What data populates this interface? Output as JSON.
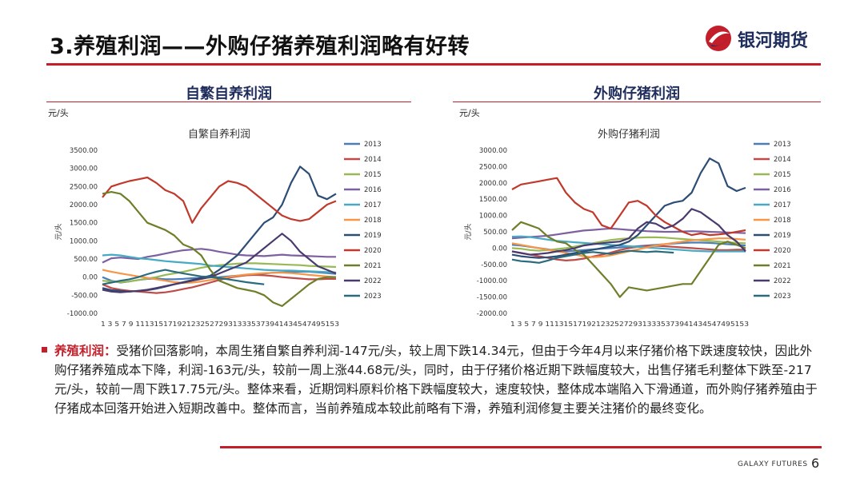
{
  "header": {
    "title": "3.养殖利润——外购仔猪养殖利润略有好转",
    "logo_text": "银河期货"
  },
  "panels": [
    {
      "title": "自繁自养利润",
      "unit": "元/头"
    },
    {
      "title": "外购仔猪利润",
      "unit": "元/头"
    }
  ],
  "chart_data": [
    {
      "type": "line",
      "title": "自繁自养利润",
      "ylabel": "元/头",
      "ylim": [
        -1000,
        3500
      ],
      "yticks": [
        "3500.00",
        "3000.00",
        "2500.00",
        "2000.00",
        "1500.00",
        "1000.00",
        "500.00",
        "0.00",
        "-500.00",
        "-1000.00"
      ],
      "x": [
        1,
        3,
        5,
        7,
        9,
        11,
        13,
        15,
        17,
        19,
        21,
        23,
        25,
        27,
        29,
        31,
        33,
        35,
        37,
        39,
        41,
        43,
        45,
        47,
        49,
        51,
        53
      ],
      "series": [
        {
          "name": "2013",
          "color": "#4a7ebb",
          "values": [
            0,
            -100,
            -150,
            -120,
            -80,
            -50,
            -40,
            -60,
            -60,
            -50,
            -30,
            -20,
            -10,
            0,
            20,
            40,
            60,
            80,
            100,
            120,
            130,
            140,
            150,
            150,
            130,
            110,
            90
          ]
        },
        {
          "name": "2014",
          "color": "#be4b48",
          "values": [
            -200,
            -300,
            -350,
            -380,
            -400,
            -420,
            -440,
            -420,
            -380,
            -330,
            -280,
            -220,
            -150,
            -80,
            -20,
            20,
            50,
            60,
            50,
            30,
            0,
            -20,
            -40,
            -60,
            -60,
            -50,
            -50
          ]
        },
        {
          "name": "2015",
          "color": "#98b954",
          "values": [
            -100,
            -120,
            -140,
            -120,
            -80,
            -40,
            0,
            60,
            100,
            150,
            200,
            260,
            300,
            330,
            350,
            370,
            380,
            380,
            370,
            360,
            350,
            340,
            330,
            310,
            300,
            290,
            280
          ]
        },
        {
          "name": "2016",
          "color": "#7d60a0",
          "values": [
            400,
            520,
            540,
            520,
            500,
            560,
            600,
            650,
            700,
            740,
            760,
            780,
            750,
            700,
            660,
            620,
            600,
            590,
            580,
            600,
            620,
            600,
            590,
            580,
            570,
            560,
            560
          ]
        },
        {
          "name": "2017",
          "color": "#46aac4",
          "values": [
            600,
            620,
            600,
            560,
            520,
            500,
            470,
            440,
            420,
            400,
            380,
            360,
            320,
            300,
            280,
            260,
            240,
            220,
            200,
            190,
            180,
            180,
            170,
            160,
            150,
            140,
            130
          ]
        },
        {
          "name": "2018",
          "color": "#f69646",
          "values": [
            200,
            150,
            100,
            60,
            20,
            -20,
            -60,
            -100,
            -140,
            -160,
            -150,
            -120,
            -80,
            -40,
            0,
            40,
            70,
            90,
            110,
            120,
            120,
            110,
            90,
            60,
            40,
            20,
            0
          ]
        },
        {
          "name": "2019",
          "color": "#2c4d75",
          "values": [
            -300,
            -360,
            -380,
            -400,
            -380,
            -360,
            -320,
            -260,
            -200,
            -140,
            -80,
            -20,
            40,
            200,
            400,
            600,
            900,
            1200,
            1500,
            1650,
            2000,
            2600,
            3050,
            2850,
            2250,
            2150,
            2300
          ]
        },
        {
          "name": "2020",
          "color": "#c0392b",
          "values": [
            2200,
            2500,
            2580,
            2650,
            2700,
            2750,
            2600,
            2400,
            2300,
            2100,
            1500,
            1900,
            2200,
            2500,
            2650,
            2600,
            2500,
            2300,
            2100,
            1900,
            1700,
            1600,
            1550,
            1600,
            1800,
            2000,
            2100
          ]
        },
        {
          "name": "2021",
          "color": "#6e7f2a",
          "values": [
            2300,
            2350,
            2300,
            2100,
            1800,
            1500,
            1400,
            1300,
            1150,
            900,
            800,
            600,
            200,
            -100,
            -200,
            -300,
            -350,
            -400,
            -500,
            -700,
            -800,
            -600,
            -400,
            -200,
            -50,
            0,
            0
          ]
        },
        {
          "name": "2022",
          "color": "#4a3b6e",
          "values": [
            -350,
            -400,
            -420,
            -400,
            -380,
            -350,
            -300,
            -250,
            -200,
            -150,
            -100,
            -50,
            0,
            100,
            200,
            300,
            400,
            600,
            800,
            1000,
            1200,
            1000,
            700,
            500,
            300,
            200,
            100
          ]
        },
        {
          "name": "2023",
          "color": "#2a6b7d",
          "values": [
            -200,
            -150,
            -100,
            -60,
            0,
            80,
            150,
            200,
            150,
            100,
            60,
            20,
            0,
            -30,
            -60,
            -100,
            -140,
            -170,
            -200,
            null,
            null,
            null,
            null,
            null,
            null,
            null,
            null
          ]
        }
      ]
    },
    {
      "type": "line",
      "title": "外购仔猪利润",
      "ylabel": "元/头",
      "ylim": [
        -2000,
        3000
      ],
      "yticks": [
        "3000.00",
        "2500.00",
        "2000.00",
        "1500.00",
        "1000.00",
        "500.00",
        "0.00",
        "-500.00",
        "-1000.00",
        "-1500.00",
        "-2000.00"
      ],
      "x": [
        1,
        3,
        5,
        7,
        9,
        11,
        13,
        15,
        17,
        19,
        21,
        23,
        25,
        27,
        29,
        31,
        33,
        35,
        37,
        39,
        41,
        43,
        45,
        47,
        49,
        51,
        53
      ],
      "series": [
        {
          "name": "2013",
          "color": "#4a7ebb",
          "values": [
            100,
            80,
            40,
            0,
            -40,
            -80,
            -100,
            -80,
            -60,
            -40,
            -20,
            0,
            20,
            40,
            60,
            80,
            100,
            120,
            140,
            160,
            170,
            170,
            160,
            140,
            120,
            100,
            80
          ]
        },
        {
          "name": "2014",
          "color": "#be4b48",
          "values": [
            -100,
            -150,
            -200,
            -250,
            -300,
            -350,
            -380,
            -360,
            -320,
            -260,
            -200,
            -140,
            -60,
            0,
            40,
            60,
            70,
            60,
            40,
            20,
            0,
            -20,
            -40,
            -60,
            -60,
            -50,
            -50
          ]
        },
        {
          "name": "2015",
          "color": "#98b954",
          "values": [
            0,
            -20,
            -60,
            -80,
            -60,
            -30,
            0,
            50,
            100,
            150,
            200,
            250,
            280,
            300,
            320,
            330,
            330,
            320,
            300,
            280,
            260,
            240,
            220,
            200,
            180,
            160,
            150
          ]
        },
        {
          "name": "2016",
          "color": "#7d60a0",
          "values": [
            300,
            320,
            340,
            360,
            380,
            420,
            460,
            500,
            540,
            560,
            580,
            600,
            580,
            560,
            540,
            520,
            510,
            500,
            500,
            510,
            520,
            510,
            500,
            490,
            480,
            470,
            460
          ]
        },
        {
          "name": "2017",
          "color": "#46aac4",
          "values": [
            350,
            360,
            340,
            300,
            260,
            220,
            200,
            180,
            160,
            140,
            120,
            100,
            80,
            60,
            40,
            20,
            0,
            -20,
            -40,
            -60,
            -80,
            -90,
            -100,
            -100,
            -100,
            -100,
            -100
          ]
        },
        {
          "name": "2018",
          "color": "#f69646",
          "values": [
            150,
            100,
            50,
            0,
            -50,
            -100,
            -150,
            -200,
            -250,
            -280,
            -260,
            -220,
            -160,
            -100,
            -40,
            20,
            80,
            120,
            160,
            200,
            240,
            260,
            280,
            300,
            300,
            280,
            260
          ]
        },
        {
          "name": "2019",
          "color": "#2c4d75",
          "values": [
            -200,
            -250,
            -280,
            -300,
            -280,
            -250,
            -200,
            -150,
            -100,
            -50,
            0,
            50,
            100,
            200,
            400,
            700,
            1000,
            1300,
            1400,
            1450,
            1700,
            2300,
            2750,
            2600,
            1900,
            1750,
            1850
          ]
        },
        {
          "name": "2020",
          "color": "#c0392b",
          "values": [
            1800,
            1950,
            2000,
            2050,
            2100,
            2150,
            1700,
            1400,
            1200,
            1100,
            700,
            600,
            1000,
            1400,
            1450,
            1300,
            1000,
            800,
            650,
            500,
            400,
            450,
            400,
            420,
            450,
            500,
            550
          ]
        },
        {
          "name": "2021",
          "color": "#6e7f2a",
          "values": [
            550,
            800,
            700,
            600,
            350,
            200,
            150,
            -50,
            -200,
            -500,
            -800,
            -1100,
            -1500,
            -1200,
            -1250,
            -1300,
            -1250,
            -1200,
            -1150,
            -1100,
            -1100,
            -700,
            -300,
            100,
            200,
            100,
            0
          ]
        },
        {
          "name": "2022",
          "color": "#4a3b6e",
          "values": [
            -100,
            -150,
            -200,
            -180,
            -150,
            -100,
            -60,
            0,
            80,
            120,
            150,
            180,
            200,
            300,
            600,
            800,
            750,
            600,
            700,
            900,
            1200,
            1100,
            900,
            700,
            400,
            200,
            -100
          ]
        },
        {
          "name": "2023",
          "color": "#2a6b7d",
          "values": [
            -350,
            -400,
            -420,
            -450,
            -380,
            -300,
            -250,
            -200,
            -150,
            -120,
            -150,
            -180,
            -120,
            -80,
            -100,
            -120,
            -100,
            -120,
            -140,
            null,
            null,
            null,
            null,
            null,
            null,
            null,
            null
          ]
        }
      ]
    }
  ],
  "xtick_label": "1 3 5 7 9 11131517192123252729313335373941434547495153",
  "body": {
    "label": "养殖利润：",
    "text": "受猪价回落影响，本周生猪自繁自养利润-147元/头，较上周下跌14.34元，但由于今年4月以来仔猪价格下跌速度较快，因此外购仔猪养殖成本下降，利润-163元/头，较前一周上涨44.68元/头，同时，由于仔猪价格近期下跌幅度较大，出售仔猪毛利整体下跌至-217元/头，较前一周下跌17.75元/头。整体来看，近期饲料原料价格下跌幅度较大，速度较快，整体成本端陷入下滑通道，而外购仔猪养殖由于仔猪成本回落开始进入短期改善中。整体而言，当前养殖成本较此前略有下滑，养殖利润修复主要关注猪价的最终变化。"
  },
  "footer": {
    "brand": "GALAXY FUTURES",
    "page": "6"
  }
}
